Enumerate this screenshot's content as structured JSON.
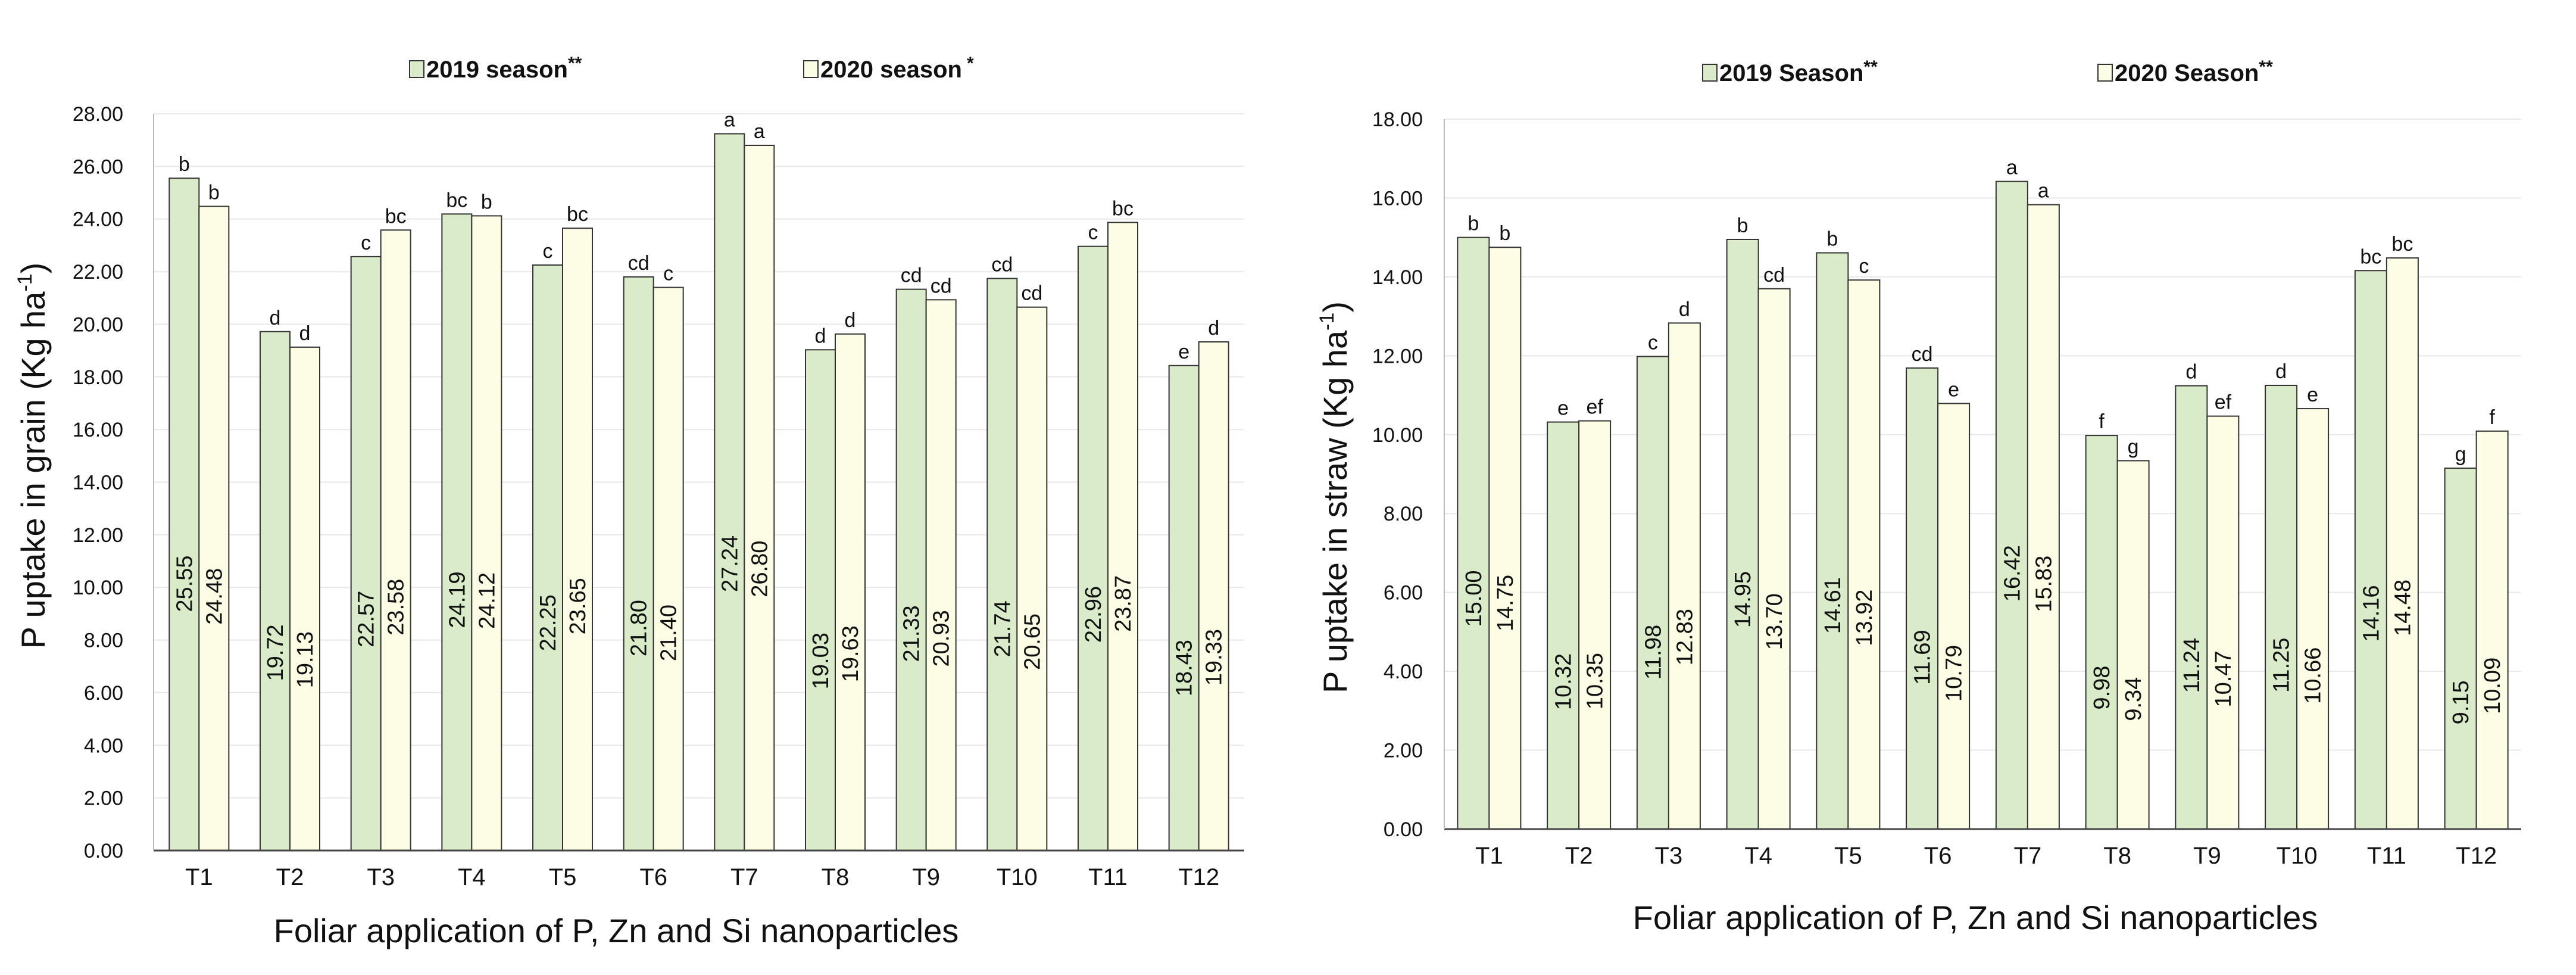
{
  "chart_data": [
    {
      "type": "bar",
      "categories": [
        "T1",
        "T2",
        "T3",
        "T4",
        "T5",
        "T6",
        "T7",
        "T8",
        "T9",
        "T10",
        "T11",
        "T12"
      ],
      "series": [
        {
          "name": "2019 season",
          "sig": "**",
          "color": "#d9ebc8",
          "values": [
            25.55,
            19.72,
            22.57,
            24.19,
            22.25,
            21.8,
            27.24,
            19.03,
            21.33,
            21.74,
            22.96,
            18.43
          ],
          "value_labels": [
            "25.55",
            "19.72",
            "22.57",
            "24.19",
            "22.25",
            "21.80",
            "27.24",
            "19.03",
            "21.33",
            "21.74",
            "22.96",
            "18.43"
          ],
          "letters": [
            "b",
            "d",
            "c",
            "bc",
            "c",
            "cd",
            "a",
            "d",
            "cd",
            "cd",
            "c",
            "e"
          ]
        },
        {
          "name": "2020 season",
          "sig": "*",
          "color": "#fdfde6",
          "values": [
            24.48,
            19.13,
            23.58,
            24.12,
            23.65,
            21.4,
            26.8,
            19.63,
            20.93,
            20.65,
            23.87,
            19.33
          ],
          "value_labels": [
            "24.48",
            "19.13",
            "23.58",
            "24.12",
            "23.65",
            "21.40",
            "26.80",
            "19.63",
            "20.93",
            "20.65",
            "23.87",
            "19.33"
          ],
          "letters": [
            "b",
            "d",
            "bc",
            "b",
            "bc",
            "c",
            "a",
            "d",
            "cd",
            "cd",
            "bc",
            "d"
          ]
        }
      ],
      "ylabel": "P uptake in grain (Kg ha",
      "ylabel_sup": "-1",
      "ylabel_close": ")",
      "xlabel": "Foliar application of P, Zn and Si nanoparticles",
      "ylim": [
        0,
        28
      ],
      "yticks": [
        "0.00",
        "2.00",
        "4.00",
        "6.00",
        "8.00",
        "10.00",
        "12.00",
        "14.00",
        "16.00",
        "18.00",
        "20.00",
        "22.00",
        "24.00",
        "26.00",
        "28.00"
      ],
      "grid": true,
      "legend": "top"
    },
    {
      "type": "bar",
      "categories": [
        "T1",
        "T2",
        "T3",
        "T4",
        "T5",
        "T6",
        "T7",
        "T8",
        "T9",
        "T10",
        "T11",
        "T12"
      ],
      "series": [
        {
          "name": "2019 Season",
          "sig": "**",
          "color": "#d9ebc8",
          "values": [
            15.0,
            10.32,
            11.98,
            14.95,
            14.61,
            11.69,
            16.42,
            9.98,
            11.24,
            11.25,
            14.16,
            9.15
          ],
          "value_labels": [
            "15.00",
            "10.32",
            "11.98",
            "14.95",
            "14.61",
            "11.69",
            "16.42",
            "9.98",
            "11.24",
            "11.25",
            "14.16",
            "9.15"
          ],
          "letters": [
            "b",
            "e",
            "c",
            "b",
            "b",
            "cd",
            "a",
            "f",
            "d",
            "d",
            "bc",
            "g"
          ]
        },
        {
          "name": "2020 Season",
          "sig": "**",
          "color": "#fdfde6",
          "values": [
            14.75,
            10.35,
            12.83,
            13.7,
            13.92,
            10.79,
            15.83,
            9.34,
            10.47,
            10.66,
            14.48,
            10.09
          ],
          "value_labels": [
            "14.75",
            "10.35",
            "12.83",
            "13.70",
            "13.92",
            "10.79",
            "15.83",
            "9.34",
            "10.47",
            "10.66",
            "14.48",
            "10.09"
          ],
          "letters": [
            "b",
            "ef",
            "d",
            "cd",
            "c",
            "e",
            "a",
            "g",
            "ef",
            "e",
            "bc",
            "f"
          ]
        }
      ],
      "ylabel": "P uptake in straw (Kg ha",
      "ylabel_sup": "-1",
      "ylabel_close": ")",
      "xlabel": "Foliar application of P, Zn and Si nanoparticles",
      "ylim": [
        0,
        18
      ],
      "yticks": [
        "0.00",
        "2.00",
        "4.00",
        "6.00",
        "8.00",
        "10.00",
        "12.00",
        "14.00",
        "16.00",
        "18.00"
      ],
      "grid": true,
      "legend": "top"
    }
  ],
  "colors": {
    "bar_stroke": "#333333",
    "axis": "#444444",
    "grid": "#e8e8e8",
    "text": "#111111"
  }
}
